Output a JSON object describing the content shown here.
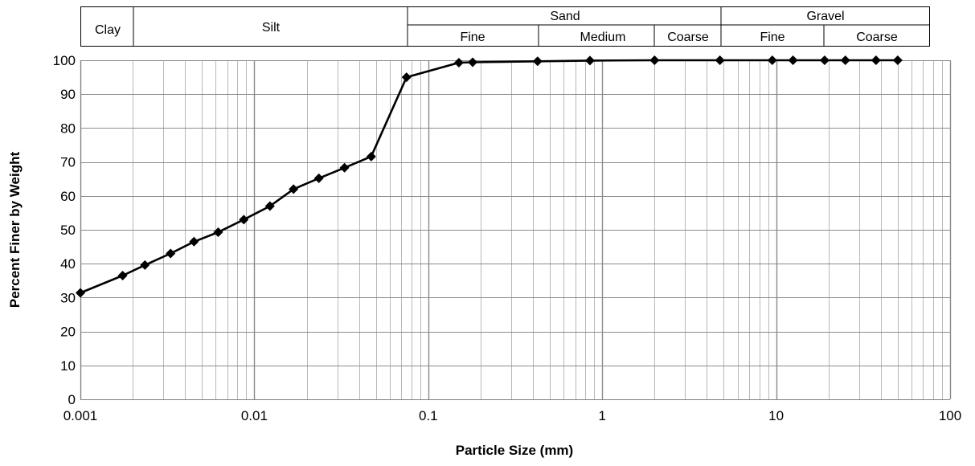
{
  "chart_data": {
    "type": "line",
    "title": "",
    "xlabel": "Particle Size (mm)",
    "ylabel": "Percent Finer by Weight",
    "x_scale": "log",
    "xlim": [
      0.001,
      100
    ],
    "ylim": [
      0,
      100
    ],
    "grid": true,
    "x_tick_labels": [
      "0.001",
      "0.01",
      "0.1",
      "1",
      "10",
      "100"
    ],
    "y_tick_labels": [
      "0",
      "10",
      "20",
      "30",
      "40",
      "50",
      "60",
      "70",
      "80",
      "90",
      "100"
    ],
    "classification": {
      "top_groups": [
        "Clay",
        "Silt",
        "Sand",
        "Gravel"
      ],
      "sand_subdivisions": [
        "Fine",
        "Medium",
        "Coarse"
      ],
      "gravel_subdivisions": [
        "Fine",
        "Coarse"
      ]
    },
    "series": [
      {
        "color": "#000000",
        "marker": "diamond",
        "points": [
          [
            0.001,
            31.4
          ],
          [
            0.00175,
            36.5
          ],
          [
            0.00235,
            39.6
          ],
          [
            0.0033,
            43.0
          ],
          [
            0.0045,
            46.5
          ],
          [
            0.0062,
            49.3
          ],
          [
            0.0087,
            53.0
          ],
          [
            0.0123,
            57.0
          ],
          [
            0.0168,
            62.0
          ],
          [
            0.0235,
            65.2
          ],
          [
            0.033,
            68.3
          ],
          [
            0.047,
            71.6
          ],
          [
            0.075,
            95.0
          ],
          [
            0.15,
            99.3
          ],
          [
            0.18,
            99.4
          ],
          [
            0.425,
            99.7
          ],
          [
            0.85,
            99.9
          ],
          [
            2.0,
            100
          ],
          [
            4.75,
            100
          ],
          [
            9.5,
            100
          ],
          [
            12.5,
            100
          ],
          [
            19.0,
            100
          ],
          [
            25.0,
            100
          ],
          [
            37.5,
            100
          ],
          [
            50.0,
            100
          ]
        ]
      }
    ]
  }
}
